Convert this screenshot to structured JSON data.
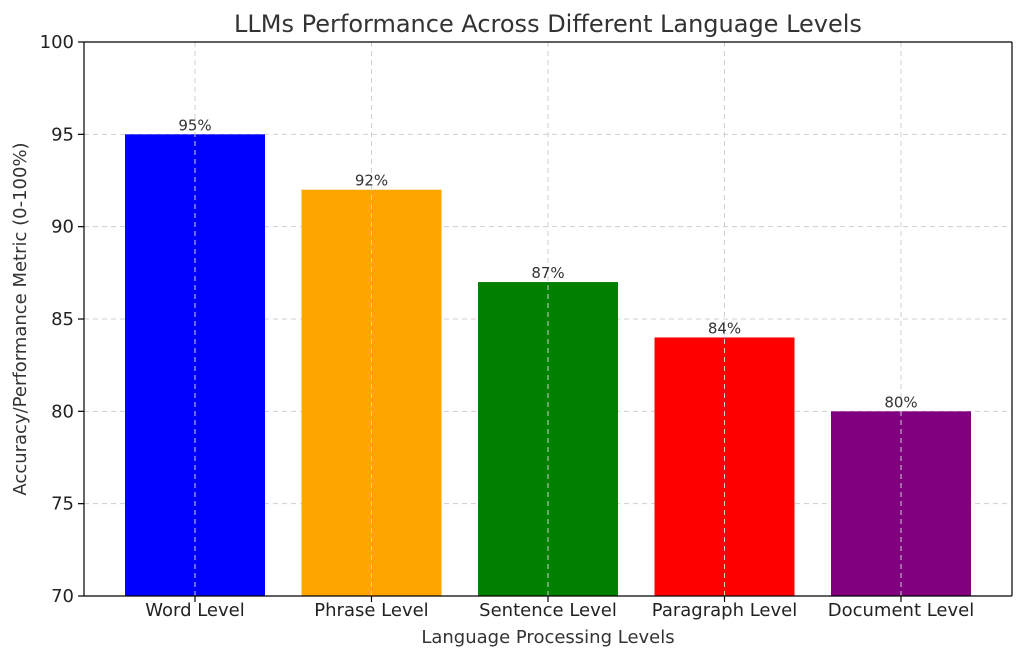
{
  "chart_data": {
    "type": "bar",
    "title": "LLMs Performance Across Different Language Levels",
    "xlabel": "Language Processing Levels",
    "ylabel": "Accuracy/Performance Metric (0-100%)",
    "categories": [
      "Word Level",
      "Phrase Level",
      "Sentence Level",
      "Paragraph Level",
      "Document Level"
    ],
    "values": [
      95,
      92,
      87,
      84,
      80
    ],
    "value_labels": [
      "95%",
      "92%",
      "87%",
      "84%",
      "80%"
    ],
    "colors": [
      "#0000ff",
      "#ffa500",
      "#008000",
      "#ff0000",
      "#800080"
    ],
    "ylim": [
      70,
      100
    ],
    "yticks": [
      70,
      75,
      80,
      85,
      90,
      95,
      100
    ],
    "grid": true,
    "legend": "none"
  }
}
